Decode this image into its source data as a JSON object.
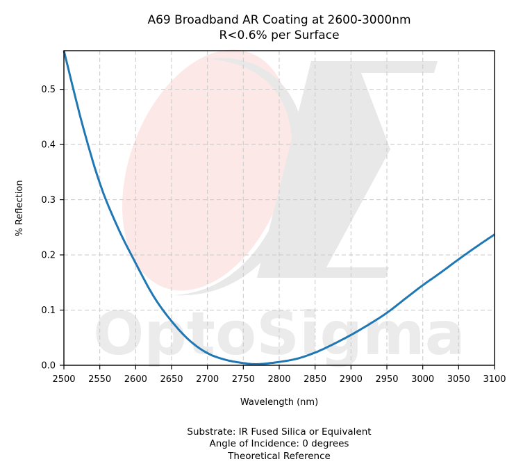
{
  "chart_data": {
    "type": "line",
    "title": "A69 Broadband AR Coating at 2600-3000nm",
    "subtitle": "R<0.6% per Surface",
    "xlabel": "Wavelength (nm)",
    "ylabel": "% Reflection",
    "xlim": [
      2500,
      3100
    ],
    "ylim": [
      0,
      0.57
    ],
    "xticks": [
      2500,
      2550,
      2600,
      2650,
      2700,
      2750,
      2800,
      2850,
      2900,
      2950,
      3000,
      3050,
      3100
    ],
    "yticks": [
      0.0,
      0.1,
      0.2,
      0.3,
      0.4,
      0.5
    ],
    "xtick_labels": [
      "2500",
      "2550",
      "2600",
      "2650",
      "2700",
      "2750",
      "2800",
      "2850",
      "2900",
      "2950",
      "3000",
      "3050",
      "3100"
    ],
    "ytick_labels": [
      "0.0",
      "0.1",
      "0.2",
      "0.3",
      "0.4",
      "0.5"
    ],
    "grid": true,
    "series": [
      {
        "color": "#1f77b4",
        "x": [
          2500,
          2525,
          2550,
          2575,
          2600,
          2625,
          2650,
          2675,
          2700,
          2725,
          2750,
          2770,
          2800,
          2825,
          2850,
          2875,
          2900,
          2925,
          2950,
          2975,
          3000,
          3025,
          3050,
          3075,
          3100
        ],
        "y": [
          0.57,
          0.44,
          0.33,
          0.25,
          0.185,
          0.125,
          0.08,
          0.045,
          0.022,
          0.01,
          0.004,
          0.002,
          0.006,
          0.012,
          0.023,
          0.038,
          0.055,
          0.074,
          0.095,
          0.12,
          0.145,
          0.168,
          0.192,
          0.215,
          0.237
        ]
      }
    ]
  },
  "watermark": {
    "text": "OptoSigma",
    "accent": "#fde8e8",
    "gray": "#e8e8e8"
  },
  "footer_lines": [
    "Substrate: IR Fused Silica or Equivalent",
    "Angle of Incidence: 0 degrees",
    "Theoretical Reference"
  ]
}
